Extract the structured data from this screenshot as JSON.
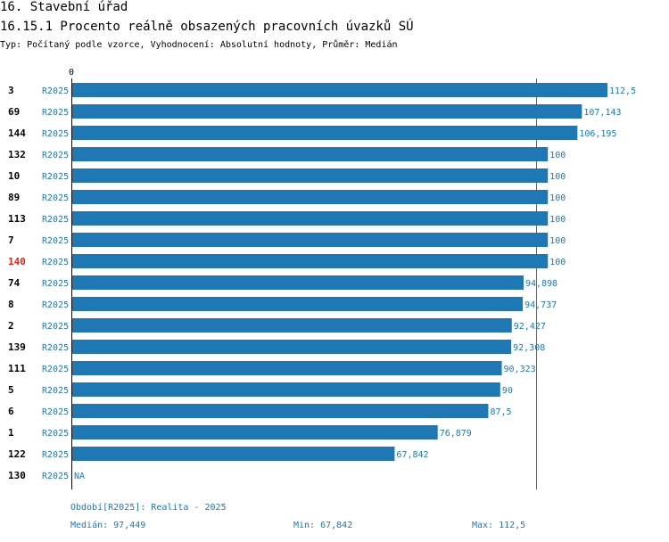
{
  "header": {
    "title": "16. Stavební úřad",
    "subtitle": "16.15.1 Procento reálně obsazených pracovních úvazků SÚ",
    "type_line": "Typ: Počítaný podle vzorce, Vyhodnocení: Absolutní hodnoty, Průměr: Medián"
  },
  "chart_data": {
    "type": "bar",
    "orientation": "horizontal",
    "axis_zero_label": "0",
    "xlim": [
      0,
      112.5
    ],
    "median_line": 97.449,
    "highlight_color": "#e8211c",
    "bar_color": "#1f77b4",
    "rows": [
      {
        "id": "3",
        "period": "R2025",
        "value": 112.5,
        "label": "112,5",
        "highlight": false
      },
      {
        "id": "69",
        "period": "R2025",
        "value": 107.143,
        "label": "107,143",
        "highlight": false
      },
      {
        "id": "144",
        "period": "R2025",
        "value": 106.195,
        "label": "106,195",
        "highlight": false
      },
      {
        "id": "132",
        "period": "R2025",
        "value": 100,
        "label": "100",
        "highlight": false
      },
      {
        "id": "10",
        "period": "R2025",
        "value": 100,
        "label": "100",
        "highlight": false
      },
      {
        "id": "89",
        "period": "R2025",
        "value": 100,
        "label": "100",
        "highlight": false
      },
      {
        "id": "113",
        "period": "R2025",
        "value": 100,
        "label": "100",
        "highlight": false
      },
      {
        "id": "7",
        "period": "R2025",
        "value": 100,
        "label": "100",
        "highlight": false
      },
      {
        "id": "140",
        "period": "R2025",
        "value": 100,
        "label": "100",
        "highlight": true
      },
      {
        "id": "74",
        "period": "R2025",
        "value": 94.898,
        "label": "94,898",
        "highlight": false
      },
      {
        "id": "8",
        "period": "R2025",
        "value": 94.737,
        "label": "94,737",
        "highlight": false
      },
      {
        "id": "2",
        "period": "R2025",
        "value": 92.427,
        "label": "92,427",
        "highlight": false
      },
      {
        "id": "139",
        "period": "R2025",
        "value": 92.308,
        "label": "92,308",
        "highlight": false
      },
      {
        "id": "111",
        "period": "R2025",
        "value": 90.323,
        "label": "90,323",
        "highlight": false
      },
      {
        "id": "5",
        "period": "R2025",
        "value": 90,
        "label": "90",
        "highlight": false
      },
      {
        "id": "6",
        "period": "R2025",
        "value": 87.5,
        "label": "87,5",
        "highlight": false
      },
      {
        "id": "1",
        "period": "R2025",
        "value": 76.879,
        "label": "76,879",
        "highlight": false
      },
      {
        "id": "122",
        "period": "R2025",
        "value": 67.842,
        "label": "67,842",
        "highlight": false
      },
      {
        "id": "130",
        "period": "R2025",
        "value": null,
        "label": "NA",
        "highlight": false
      }
    ]
  },
  "footer": {
    "period_text": "Období[R2025]: Realita - 2025",
    "median_text": "Medián: 97,449",
    "min_text": "Min: 67,842",
    "max_text": "Max: 112,5"
  }
}
